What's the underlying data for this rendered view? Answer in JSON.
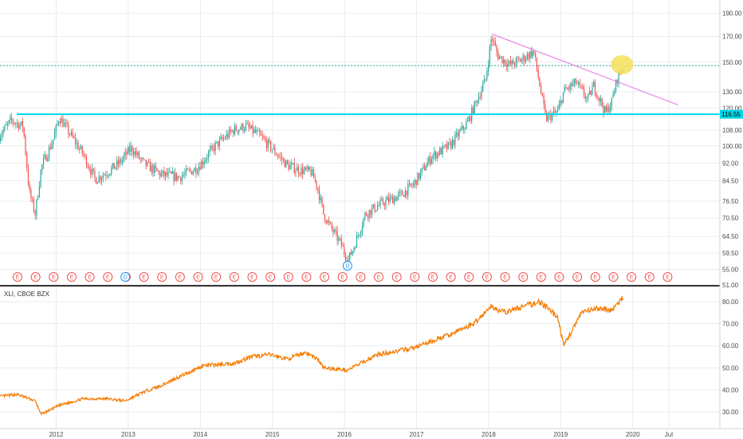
{
  "colors": {
    "background": "#ffffff",
    "grid": "#e8edf3",
    "up_candle": "#26a69a",
    "down_candle": "#ef5350",
    "support_line": "#00d8e8",
    "resistance_line": "#e46fe4",
    "price_level_line": "#26a69a",
    "highlight": "#f5e15a",
    "xli_line": "#f57c00",
    "earnings_marker": "#ef5350",
    "dividend_marker": "#2196f3",
    "axis_text": "#4a4a4a"
  },
  "main_pane": {
    "price_scale": [
      "190.00",
      "170.00",
      "150.00",
      "130.00",
      "120.00",
      "108.00",
      "100.00",
      "92.00",
      "84.50",
      "76.50",
      "70.50",
      "64.50",
      "59.50",
      "55.00",
      "51.00"
    ],
    "support_badge": "116.55",
    "earnings_label": "E",
    "dividend_label": "D"
  },
  "lower_pane": {
    "legend": "XLI, CBOE BZX",
    "price_scale": [
      "80.00",
      "70.00",
      "60.00",
      "50.00",
      "40.00",
      "30.00"
    ]
  },
  "time_axis": [
    "2012",
    "2013",
    "2014",
    "2015",
    "2016",
    "2017",
    "2018",
    "2019",
    "2020",
    "Jul"
  ],
  "chart_data": [
    {
      "type": "candlestick",
      "scale": "log",
      "ylim": [
        51,
        195
      ],
      "x": [
        "2011-03",
        "2011-05",
        "2011-07",
        "2011-08",
        "2011-09",
        "2011-10",
        "2011-12",
        "2012-01",
        "2012-03",
        "2012-05",
        "2012-07",
        "2012-09",
        "2012-11",
        "2013-01",
        "2013-03",
        "2013-06",
        "2013-09",
        "2013-12",
        "2014-03",
        "2014-06",
        "2014-08",
        "2014-10",
        "2014-12",
        "2015-03",
        "2015-05",
        "2015-07",
        "2015-08",
        "2015-09",
        "2015-10",
        "2015-12",
        "2016-01",
        "2016-02",
        "2016-04",
        "2016-07",
        "2016-10",
        "2016-12",
        "2017-03",
        "2017-06",
        "2017-09",
        "2017-12",
        "2018-01",
        "2018-02",
        "2018-04",
        "2018-06",
        "2018-08",
        "2018-10",
        "2018-12",
        "2019-01",
        "2019-03",
        "2019-05",
        "2019-06",
        "2019-08",
        "2019-09",
        "2019-10",
        "2019-11"
      ],
      "close": [
        105,
        113,
        110,
        80,
        72,
        90,
        103,
        115,
        105,
        96,
        85,
        88,
        92,
        99,
        92,
        87,
        86,
        90,
        100,
        108,
        110,
        106,
        100,
        91,
        89,
        88,
        82,
        72,
        68,
        62,
        57,
        61,
        72,
        76,
        79,
        83,
        95,
        100,
        112,
        138,
        170,
        155,
        148,
        152,
        158,
        114,
        118,
        130,
        136,
        125,
        134,
        117,
        124,
        140,
        147
      ],
      "support_level": 116.55,
      "price_level": 147.5,
      "trendline": {
        "from": [
          "2018-01",
          172
        ],
        "to": [
          "2020-08",
          122
        ]
      },
      "highlight_at": [
        "2019-11",
        147
      ],
      "earnings_markers": 37,
      "dividend_markers": [
        [
          "2012-12",
          "D"
        ],
        [
          "2016-01",
          "D"
        ]
      ]
    },
    {
      "type": "line",
      "series": [
        {
          "name": "XLI, CBOE BZX",
          "values": [
            37,
            38,
            35,
            29,
            33,
            36,
            36,
            35,
            39,
            42,
            46,
            51,
            52,
            55,
            56,
            54,
            57,
            54,
            50,
            49,
            56,
            59,
            65,
            70,
            78,
            75,
            80,
            73,
            60,
            75,
            77,
            76,
            82
          ]
        }
      ],
      "x": [
        "2011-03",
        "2011-06",
        "2011-09",
        "2011-10",
        "2012-01",
        "2012-05",
        "2012-09",
        "2012-12",
        "2013-03",
        "2013-06",
        "2013-09",
        "2014-01",
        "2014-06",
        "2014-09",
        "2014-12",
        "2015-03",
        "2015-06",
        "2015-08",
        "2015-09",
        "2016-01",
        "2016-06",
        "2016-12",
        "2017-06",
        "2017-10",
        "2018-01",
        "2018-03",
        "2018-09",
        "2018-12",
        "2019-01",
        "2019-04",
        "2019-07",
        "2019-09",
        "2019-11"
      ],
      "ylim": [
        25,
        85
      ]
    }
  ]
}
